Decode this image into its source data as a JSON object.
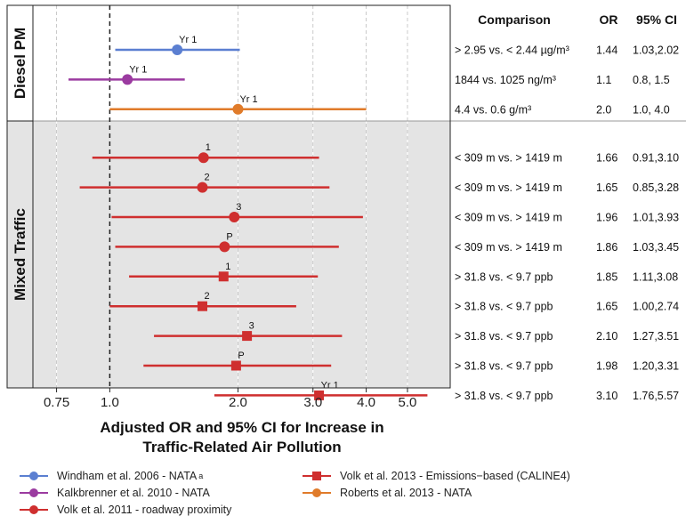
{
  "chart_data": {
    "type": "forest",
    "xlabel": [
      "Adjusted OR and 95% CI for Increase in",
      "Traffic-Related Air Pollution"
    ],
    "x_scale": "log",
    "xlim": [
      0.66,
      6.3
    ],
    "x_ticks": [
      0.75,
      1.0,
      2.0,
      3.0,
      4.0,
      5.0
    ],
    "x_tick_labels": [
      "0.75",
      "1.0",
      "2.0",
      "3.0",
      "4.0",
      "5.0"
    ],
    "reference_line": 1.0,
    "panels": [
      {
        "name": "Diesel PM",
        "background": "#ffffff",
        "rows": 3
      },
      {
        "name": "Mixed Traffic",
        "background": "#e4e4e4",
        "rows": 9
      }
    ],
    "table_headers": [
      "Comparison",
      "OR",
      "95% CI"
    ],
    "rows": [
      {
        "panel": "Diesel PM",
        "study": 0,
        "marker": "circle",
        "or": 1.44,
        "lo": 1.03,
        "hi": 2.02,
        "label": "Yr 1",
        "comparison": "> 2.95 vs. < 2.44 µg/m³",
        "or_text": "1.44",
        "ci_text": "1.03,2.02"
      },
      {
        "panel": "Diesel PM",
        "study": 1,
        "marker": "circle",
        "or": 1.1,
        "lo": 0.8,
        "hi": 1.5,
        "label": "Yr 1",
        "comparison": "1844 vs. 1025 ng/m³",
        "or_text": "1.1",
        "ci_text": "0.8,  1.5"
      },
      {
        "panel": "Diesel PM",
        "study": 4,
        "marker": "circle",
        "or": 2.0,
        "lo": 1.0,
        "hi": 4.0,
        "label": "Yr 1",
        "comparison": "4.4 vs. 0.6 g/m³",
        "or_text": "2.0",
        "ci_text": "1.0,  4.0"
      },
      {
        "panel": "Mixed Traffic",
        "study": 2,
        "marker": "circle",
        "or": 1.66,
        "lo": 0.91,
        "hi": 3.1,
        "label": "1",
        "comparison": "< 309 m vs. > 1419 m",
        "or_text": "1.66",
        "ci_text": "0.91,3.10"
      },
      {
        "panel": "Mixed Traffic",
        "study": 2,
        "marker": "circle",
        "or": 1.65,
        "lo": 0.85,
        "hi": 3.28,
        "label": "2",
        "comparison": "< 309 m vs. > 1419 m",
        "or_text": "1.65",
        "ci_text": "0.85,3.28"
      },
      {
        "panel": "Mixed Traffic",
        "study": 2,
        "marker": "circle",
        "or": 1.96,
        "lo": 1.01,
        "hi": 3.93,
        "label": "3",
        "comparison": "< 309 m vs. > 1419 m",
        "or_text": "1.96",
        "ci_text": "1.01,3.93"
      },
      {
        "panel": "Mixed Traffic",
        "study": 2,
        "marker": "circle",
        "or": 1.86,
        "lo": 1.03,
        "hi": 3.45,
        "label": "P",
        "comparison": "< 309 m vs. > 1419 m",
        "or_text": "1.86",
        "ci_text": "1.03,3.45"
      },
      {
        "panel": "Mixed Traffic",
        "study": 3,
        "marker": "square",
        "or": 1.85,
        "lo": 1.11,
        "hi": 3.08,
        "label": "1",
        "comparison": "> 31.8  vs. < 9.7 ppb",
        "or_text": "1.85",
        "ci_text": "1.11,3.08"
      },
      {
        "panel": "Mixed Traffic",
        "study": 3,
        "marker": "square",
        "or": 1.65,
        "lo": 1.0,
        "hi": 2.74,
        "label": "2",
        "comparison": "> 31.8  vs. < 9.7 ppb",
        "or_text": "1.65",
        "ci_text": "1.00,2.74"
      },
      {
        "panel": "Mixed Traffic",
        "study": 3,
        "marker": "square",
        "or": 2.1,
        "lo": 1.27,
        "hi": 3.51,
        "label": "3",
        "comparison": "> 31.8  vs. < 9.7 ppb",
        "or_text": "2.10",
        "ci_text": "1.27,3.51"
      },
      {
        "panel": "Mixed Traffic",
        "study": 3,
        "marker": "square",
        "or": 1.98,
        "lo": 1.2,
        "hi": 3.31,
        "label": "P",
        "comparison": "> 31.8  vs. < 9.7 ppb",
        "or_text": "1.98",
        "ci_text": "1.20,3.31"
      },
      {
        "panel": "Mixed Traffic",
        "study": 3,
        "marker": "square",
        "or": 3.1,
        "lo": 1.76,
        "hi": 5.57,
        "label": "Yr 1",
        "comparison": "> 31.8  vs. < 9.7 ppb",
        "or_text": "3.10",
        "ci_text": "1.76,5.57"
      }
    ],
    "studies": [
      {
        "name": "Windham et al. 2006 - NATA",
        "sup": "a",
        "color": "#5b7fd1",
        "marker": "circle"
      },
      {
        "name": "Kalkbrenner et al. 2010 - NATA",
        "sup": "",
        "color": "#9b3ba0",
        "marker": "circle"
      },
      {
        "name": "Volk et al. 2011 - roadway proximity",
        "sup": "",
        "color": "#cf2f2f",
        "marker": "circle"
      },
      {
        "name": "Volk et al. 2013 - Emissions−based (CALINE4)",
        "sup": "",
        "color": "#cf2f2f",
        "marker": "square"
      },
      {
        "name": "Roberts et al. 2013 - NATA",
        "sup": "",
        "color": "#e07b2a",
        "marker": "circle"
      }
    ]
  }
}
